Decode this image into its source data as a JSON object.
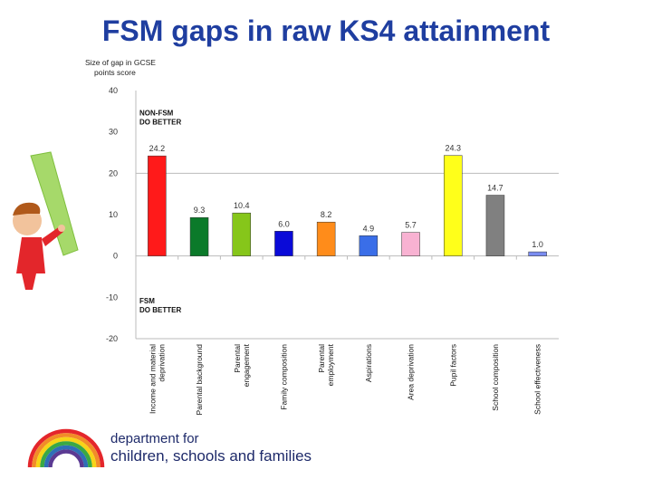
{
  "title": "FSM gaps in raw KS4 attainment",
  "chart_data": {
    "type": "bar",
    "ylabel": [
      "Size of gap in GCSE",
      "points score"
    ],
    "ylim": [
      -20,
      40
    ],
    "yticks": [
      40,
      30,
      20,
      10,
      0,
      -10,
      -20
    ],
    "grid": false,
    "annotations": [
      {
        "lines": [
          "NON-FSM",
          "DO BETTER"
        ],
        "region": "positive"
      },
      {
        "lines": [
          "FSM",
          "DO BETTER"
        ],
        "region": "negative"
      }
    ],
    "categories": [
      [
        "Income and material",
        "deprivation"
      ],
      [
        "Parental background"
      ],
      [
        "Parental",
        "engagement"
      ],
      [
        "Family composition"
      ],
      [
        "Parental",
        "employment"
      ],
      [
        "Aspirations"
      ],
      [
        "Area deprivation"
      ],
      [
        "Pupil factors"
      ],
      [
        "School composition"
      ],
      [
        "School effectiveness"
      ]
    ],
    "values": [
      24.2,
      9.3,
      10.4,
      6.0,
      8.2,
      4.9,
      5.7,
      24.3,
      14.7,
      1.0
    ],
    "value_labels": [
      "24.2",
      "9.3",
      "10.4",
      "6.0",
      "8.2",
      "4.9",
      "5.7",
      "24.3",
      "14.7",
      "1.0"
    ],
    "colors": [
      "#ff1a1a",
      "#0b7a2a",
      "#86c61a",
      "#0a0ad8",
      "#ff8c1a",
      "#3a6ee8",
      "#f8b2d2",
      "#ffff1a",
      "#808080",
      "#7a8cf0"
    ]
  },
  "footer": {
    "org_line1": "department for",
    "org_line2": "children, schools and families",
    "rainbow_colors": [
      "#e4262b",
      "#f28c28",
      "#f7d417",
      "#3aa845",
      "#2f6fb7",
      "#5b3a93"
    ]
  }
}
